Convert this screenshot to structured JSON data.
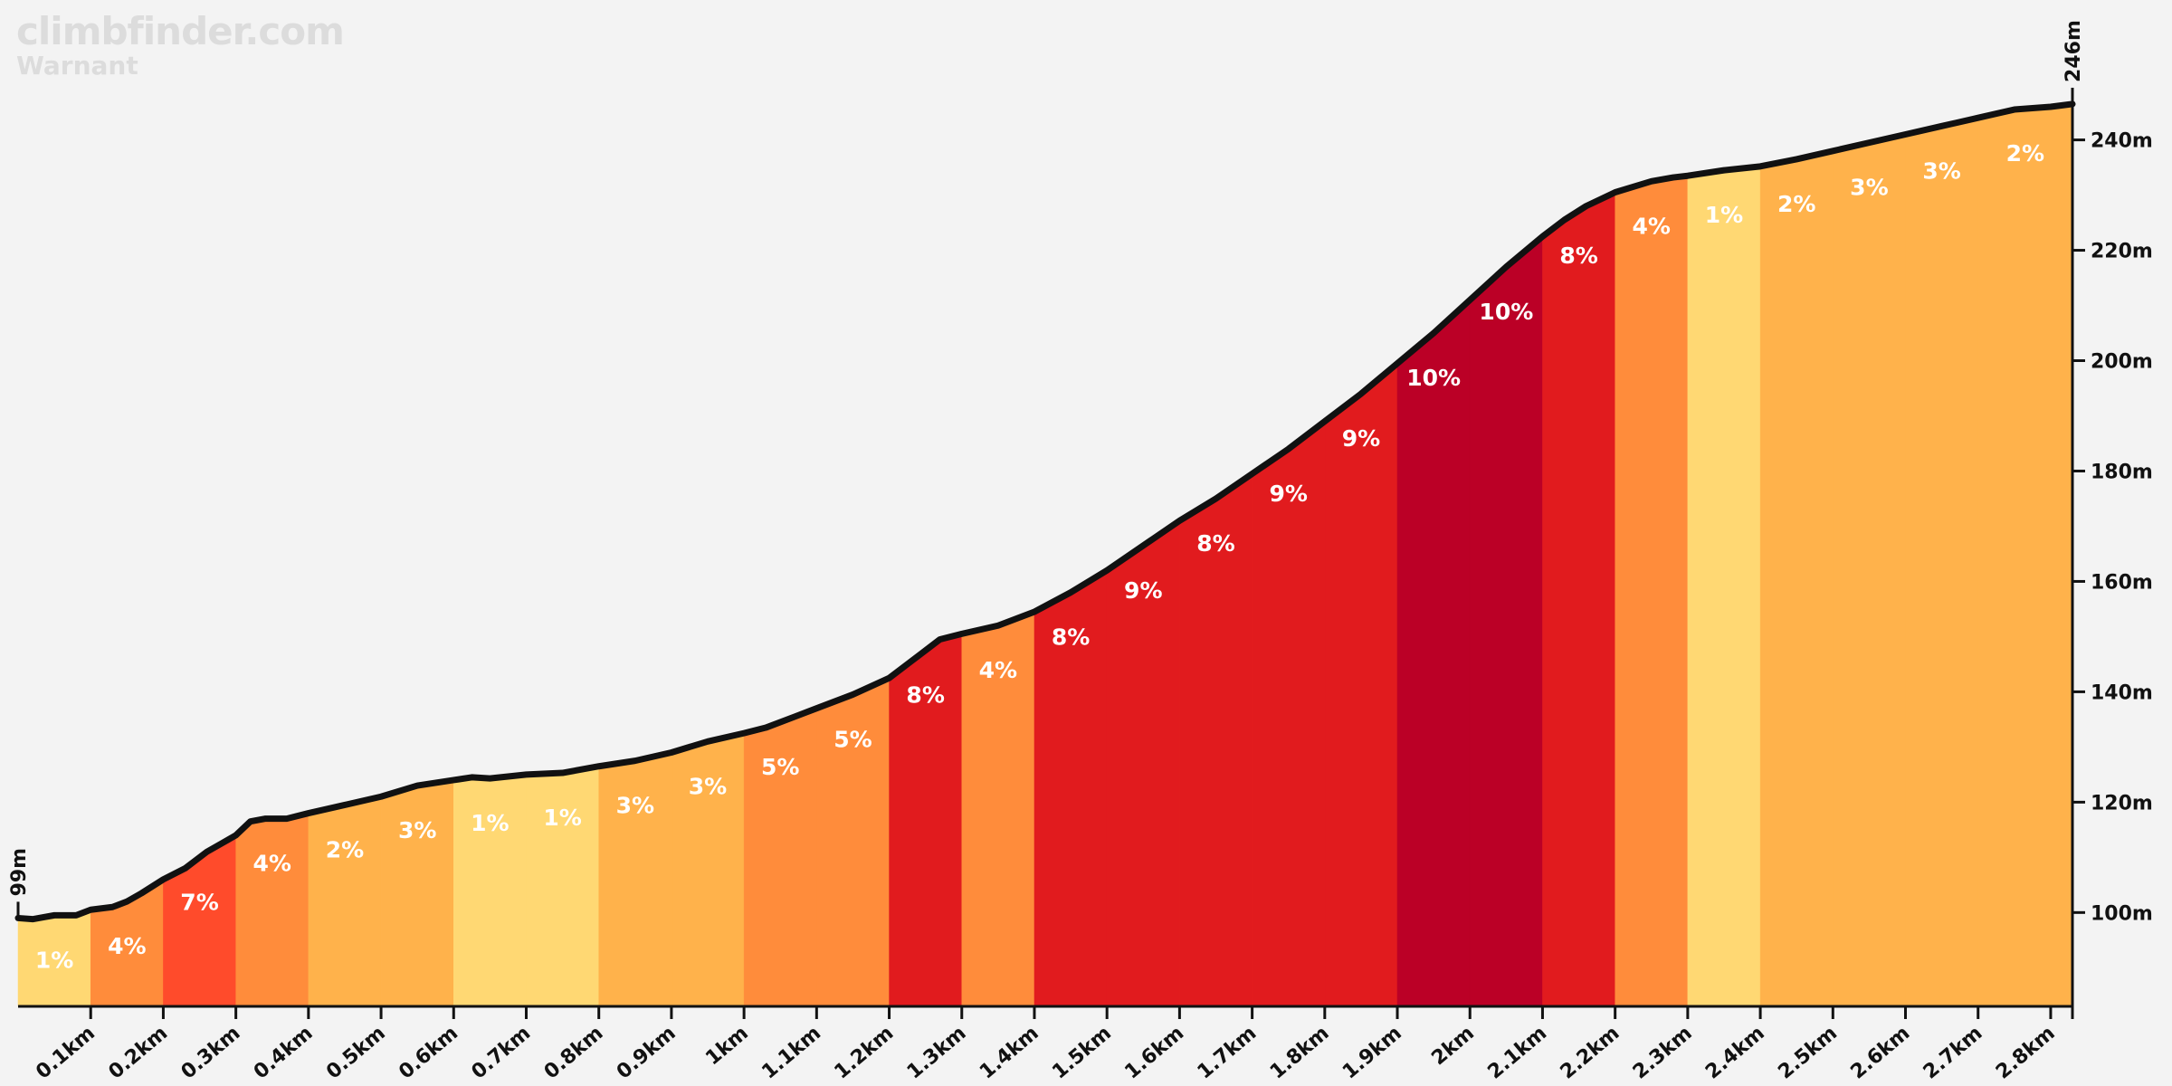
{
  "brand": {
    "site": "climbfinder.com",
    "climb_name": "Warnant"
  },
  "chart_data": {
    "type": "area",
    "xlabel": "",
    "ylabel": "",
    "xlim": [
      0,
      2.83
    ],
    "ylim": [
      83,
      246
    ],
    "start_elevation_label": "99m",
    "end_elevation_label": "246m",
    "y_ticks": [
      {
        "value": 100,
        "label": "100m"
      },
      {
        "value": 120,
        "label": "120m"
      },
      {
        "value": 140,
        "label": "140m"
      },
      {
        "value": 160,
        "label": "160m"
      },
      {
        "value": 180,
        "label": "180m"
      },
      {
        "value": 200,
        "label": "200m"
      },
      {
        "value": 220,
        "label": "220m"
      },
      {
        "value": 240,
        "label": "240m"
      }
    ],
    "x_ticks": [
      {
        "value": 0.1,
        "label": "0.1km"
      },
      {
        "value": 0.2,
        "label": "0.2km"
      },
      {
        "value": 0.3,
        "label": "0.3km"
      },
      {
        "value": 0.4,
        "label": "0.4km"
      },
      {
        "value": 0.5,
        "label": "0.5km"
      },
      {
        "value": 0.6,
        "label": "0.6km"
      },
      {
        "value": 0.7,
        "label": "0.7km"
      },
      {
        "value": 0.8,
        "label": "0.8km"
      },
      {
        "value": 0.9,
        "label": "0.9km"
      },
      {
        "value": 1.0,
        "label": "1km"
      },
      {
        "value": 1.1,
        "label": "1.1km"
      },
      {
        "value": 1.2,
        "label": "1.2km"
      },
      {
        "value": 1.3,
        "label": "1.3km"
      },
      {
        "value": 1.4,
        "label": "1.4km"
      },
      {
        "value": 1.5,
        "label": "1.5km"
      },
      {
        "value": 1.6,
        "label": "1.6km"
      },
      {
        "value": 1.7,
        "label": "1.7km"
      },
      {
        "value": 1.8,
        "label": "1.8km"
      },
      {
        "value": 1.9,
        "label": "1.9km"
      },
      {
        "value": 2.0,
        "label": "2km"
      },
      {
        "value": 2.1,
        "label": "2.1km"
      },
      {
        "value": 2.2,
        "label": "2.2km"
      },
      {
        "value": 2.3,
        "label": "2.3km"
      },
      {
        "value": 2.4,
        "label": "2.4km"
      },
      {
        "value": 2.5,
        "label": "2.5km"
      },
      {
        "value": 2.6,
        "label": "2.6km"
      },
      {
        "value": 2.7,
        "label": "2.7km"
      },
      {
        "value": 2.8,
        "label": "2.8km"
      }
    ],
    "segments": [
      {
        "start": 0.0,
        "end": 0.1,
        "grade": "1%",
        "color": "#ffd873"
      },
      {
        "start": 0.1,
        "end": 0.2,
        "grade": "4%",
        "color": "#ff8c3b"
      },
      {
        "start": 0.2,
        "end": 0.3,
        "grade": "7%",
        "color": "#ff4b2b"
      },
      {
        "start": 0.3,
        "end": 0.4,
        "grade": "4%",
        "color": "#ff8c3b"
      },
      {
        "start": 0.4,
        "end": 0.5,
        "grade": "2%",
        "color": "#ffb24b"
      },
      {
        "start": 0.5,
        "end": 0.6,
        "grade": "3%",
        "color": "#ffb24b"
      },
      {
        "start": 0.6,
        "end": 0.7,
        "grade": "1%",
        "color": "#ffd873"
      },
      {
        "start": 0.7,
        "end": 0.8,
        "grade": "1%",
        "color": "#ffd873"
      },
      {
        "start": 0.8,
        "end": 0.9,
        "grade": "3%",
        "color": "#ffb24b"
      },
      {
        "start": 0.9,
        "end": 1.0,
        "grade": "3%",
        "color": "#ffb24b"
      },
      {
        "start": 1.0,
        "end": 1.1,
        "grade": "5%",
        "color": "#ff8c3b"
      },
      {
        "start": 1.1,
        "end": 1.2,
        "grade": "5%",
        "color": "#ff8c3b"
      },
      {
        "start": 1.2,
        "end": 1.3,
        "grade": "8%",
        "color": "#e11b1e"
      },
      {
        "start": 1.3,
        "end": 1.4,
        "grade": "4%",
        "color": "#ff8c3b"
      },
      {
        "start": 1.4,
        "end": 1.5,
        "grade": "8%",
        "color": "#e11b1e"
      },
      {
        "start": 1.5,
        "end": 1.6,
        "grade": "9%",
        "color": "#e11b1e"
      },
      {
        "start": 1.6,
        "end": 1.7,
        "grade": "8%",
        "color": "#e11b1e"
      },
      {
        "start": 1.7,
        "end": 1.8,
        "grade": "9%",
        "color": "#e11b1e"
      },
      {
        "start": 1.8,
        "end": 1.9,
        "grade": "9%",
        "color": "#e11b1e"
      },
      {
        "start": 1.9,
        "end": 2.0,
        "grade": "10%",
        "color": "#bb0026"
      },
      {
        "start": 2.0,
        "end": 2.1,
        "grade": "10%",
        "color": "#bb0026"
      },
      {
        "start": 2.1,
        "end": 2.2,
        "grade": "8%",
        "color": "#e11b1e"
      },
      {
        "start": 2.2,
        "end": 2.3,
        "grade": "4%",
        "color": "#ff8c3b"
      },
      {
        "start": 2.3,
        "end": 2.4,
        "grade": "1%",
        "color": "#ffd873"
      },
      {
        "start": 2.4,
        "end": 2.5,
        "grade": "2%",
        "color": "#ffb24b"
      },
      {
        "start": 2.5,
        "end": 2.6,
        "grade": "3%",
        "color": "#ffb24b"
      },
      {
        "start": 2.6,
        "end": 2.7,
        "grade": "3%",
        "color": "#ffb24b"
      },
      {
        "start": 2.7,
        "end": 2.83,
        "grade": "2%",
        "color": "#ffb24b"
      }
    ],
    "profile": [
      [
        0.0,
        99
      ],
      [
        0.02,
        98.8
      ],
      [
        0.05,
        99.5
      ],
      [
        0.08,
        99.5
      ],
      [
        0.1,
        100.5
      ],
      [
        0.13,
        101
      ],
      [
        0.15,
        102
      ],
      [
        0.17,
        103.5
      ],
      [
        0.2,
        106
      ],
      [
        0.23,
        108
      ],
      [
        0.26,
        111
      ],
      [
        0.28,
        112.5
      ],
      [
        0.3,
        114
      ],
      [
        0.32,
        116.5
      ],
      [
        0.34,
        117
      ],
      [
        0.37,
        117
      ],
      [
        0.4,
        118
      ],
      [
        0.45,
        119.5
      ],
      [
        0.5,
        121
      ],
      [
        0.55,
        123
      ],
      [
        0.6,
        124
      ],
      [
        0.625,
        124.5
      ],
      [
        0.65,
        124.3
      ],
      [
        0.7,
        125
      ],
      [
        0.75,
        125.3
      ],
      [
        0.8,
        126.5
      ],
      [
        0.85,
        127.5
      ],
      [
        0.9,
        129
      ],
      [
        0.95,
        131
      ],
      [
        1.0,
        132.5
      ],
      [
        1.03,
        133.5
      ],
      [
        1.07,
        135.5
      ],
      [
        1.1,
        137
      ],
      [
        1.15,
        139.5
      ],
      [
        1.2,
        142.5
      ],
      [
        1.23,
        145.5
      ],
      [
        1.27,
        149.5
      ],
      [
        1.3,
        150.5
      ],
      [
        1.35,
        152
      ],
      [
        1.4,
        154.5
      ],
      [
        1.45,
        158
      ],
      [
        1.5,
        162
      ],
      [
        1.55,
        166.5
      ],
      [
        1.6,
        171
      ],
      [
        1.65,
        175
      ],
      [
        1.7,
        179.5
      ],
      [
        1.75,
        184
      ],
      [
        1.8,
        189
      ],
      [
        1.85,
        194
      ],
      [
        1.9,
        199.5
      ],
      [
        1.95,
        205
      ],
      [
        2.0,
        211
      ],
      [
        2.05,
        217
      ],
      [
        2.1,
        222.5
      ],
      [
        2.13,
        225.5
      ],
      [
        2.16,
        228
      ],
      [
        2.2,
        230.5
      ],
      [
        2.25,
        232.5
      ],
      [
        2.28,
        233.2
      ],
      [
        2.3,
        233.5
      ],
      [
        2.35,
        234.5
      ],
      [
        2.4,
        235.2
      ],
      [
        2.45,
        236.5
      ],
      [
        2.5,
        238
      ],
      [
        2.55,
        239.5
      ],
      [
        2.6,
        241
      ],
      [
        2.65,
        242.5
      ],
      [
        2.7,
        244
      ],
      [
        2.75,
        245.5
      ],
      [
        2.8,
        246
      ],
      [
        2.83,
        246.5
      ]
    ]
  }
}
